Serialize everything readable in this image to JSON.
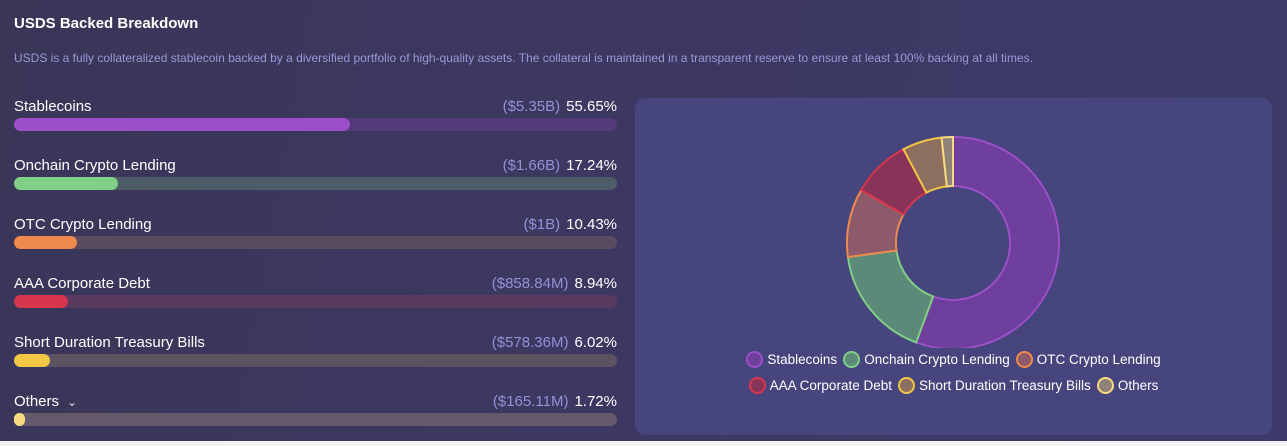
{
  "title": "USDS Backed Breakdown",
  "description": "USDS is a fully collateralized stablecoin backed by a diversified portfolio of high-quality assets. The collateral is maintained in a transparent reserve to ensure at least 100% backing at all times.",
  "chart_data": {
    "type": "pie",
    "variant": "donut",
    "legend_placement": "bottom",
    "categories": [
      "Stablecoins",
      "Onchain Crypto Lending",
      "OTC Crypto Lending",
      "AAA Corporate Debt",
      "Short Duration Treasury Bills",
      "Others"
    ],
    "amounts": [
      "($5.35B)",
      "($1.66B)",
      "($1B)",
      "($858.84M)",
      "($578.36M)",
      "($165.11M)"
    ],
    "percent_labels": [
      "55.65%",
      "17.24%",
      "10.43%",
      "8.94%",
      "6.02%",
      "1.72%"
    ],
    "values": [
      55.65,
      17.24,
      10.43,
      8.94,
      6.02,
      1.72
    ],
    "colors": [
      "#9b4fc9",
      "#7fcf86",
      "#ef8a4c",
      "#d8354f",
      "#f2c744",
      "#f7db7e"
    ],
    "fills": [
      "#6e3f9c",
      "#5c8a78",
      "#8c5a6a",
      "#8a3358",
      "#8c6f5e",
      "#8f8278"
    ],
    "tracks": [
      "#533a78",
      "#4e5b68",
      "#5a4a60",
      "#5a3a5e",
      "#5c5360",
      "#63596a"
    ]
  },
  "others_expand_icon": "chevron-down-icon"
}
